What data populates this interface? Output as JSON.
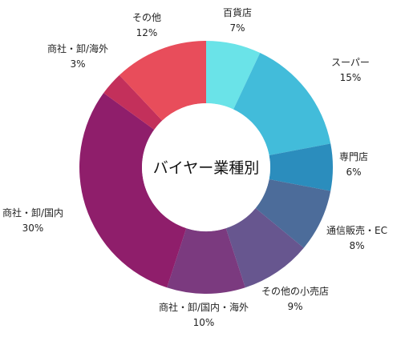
{
  "chart_data": {
    "type": "pie",
    "title": "バイヤー業種別",
    "categories": [
      "百貨店",
      "スーパー",
      "専門店",
      "通信販売・EC",
      "その他の小売店",
      "商社・卸/国内・海外",
      "商社・卸/国内",
      "商社・卸/海外",
      "その他"
    ],
    "values": [
      7,
      15,
      6,
      8,
      9,
      10,
      30,
      3,
      12
    ],
    "value_labels": [
      "7%",
      "15%",
      "6%",
      "8%",
      "9%",
      "10%",
      "30%",
      "3%",
      "12%"
    ],
    "colors": [
      "#6ae3e8",
      "#42bcda",
      "#2b8dbd",
      "#4c6c9a",
      "#67568f",
      "#7b3a7f",
      "#8f1e6b",
      "#c3305b",
      "#e84d5b"
    ],
    "legend": "none",
    "hole": true
  }
}
